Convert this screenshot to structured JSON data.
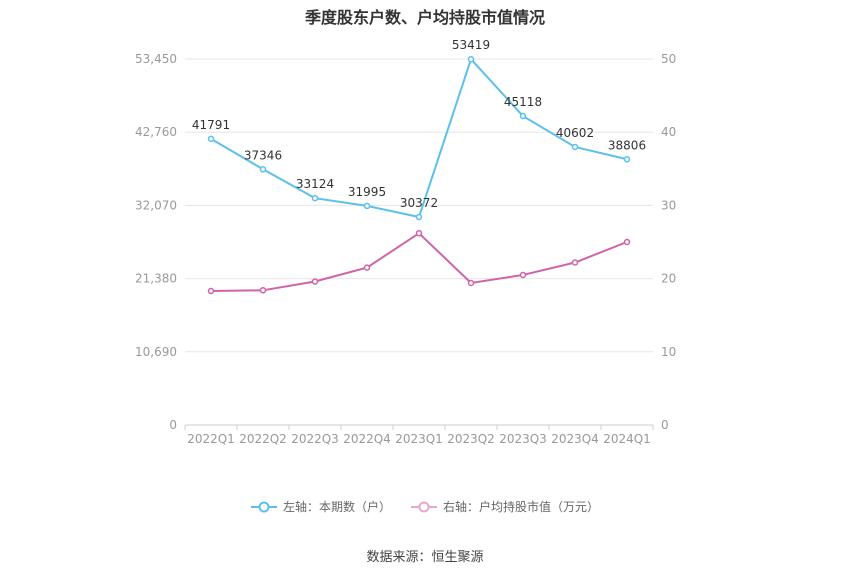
{
  "title": "季度股东户数、户均持股市值情况",
  "source": "数据来源：恒生聚源",
  "colors": {
    "left_series": "#5bc0eb",
    "right_series": "#d063a8",
    "grid": "#e6e6e6",
    "axis_text": "#999999"
  },
  "legend": [
    {
      "label": "左轴：本期数（户）",
      "color": "#5bc0eb"
    },
    {
      "label": "右轴：户均持股市值（万元）",
      "color": "#e8a7cf"
    }
  ],
  "chart_data": {
    "type": "line",
    "categories": [
      "2022Q1",
      "2022Q2",
      "2022Q3",
      "2022Q4",
      "2023Q1",
      "2023Q2",
      "2023Q3",
      "2023Q4",
      "2024Q1"
    ],
    "left_axis": {
      "ticks": [
        "0",
        "10,690",
        "21,380",
        "32,070",
        "42,760",
        "53,450"
      ],
      "ylim": [
        0,
        53450
      ]
    },
    "right_axis": {
      "ticks": [
        "0",
        "10",
        "20",
        "30",
        "40",
        "50"
      ],
      "ylim": [
        0,
        50
      ]
    },
    "series": [
      {
        "name": "本期数（户）",
        "axis": "left",
        "values": [
          41791,
          37346,
          33124,
          31995,
          30372,
          53419,
          45118,
          40602,
          38806
        ],
        "labels": [
          "41791",
          "37346",
          "33124",
          "31995",
          "30372",
          "53419",
          "45118",
          "40602",
          "38806"
        ]
      },
      {
        "name": "户均持股市值（万元）",
        "axis": "right",
        "values": [
          18.3,
          18.4,
          19.6,
          21.5,
          26.2,
          19.4,
          20.5,
          22.2,
          25.0
        ]
      }
    ]
  }
}
